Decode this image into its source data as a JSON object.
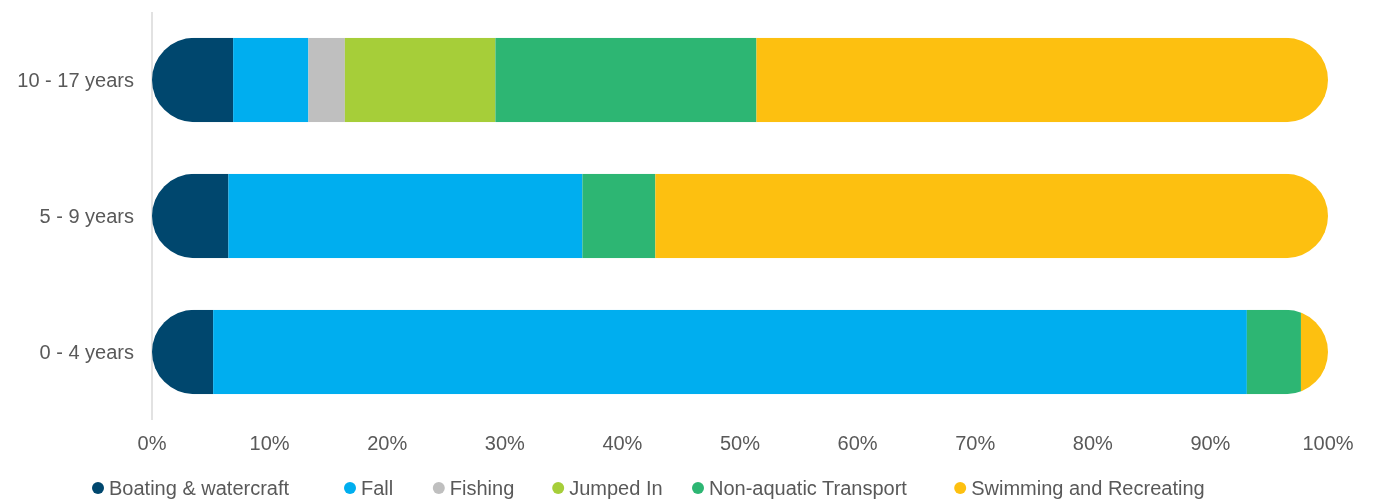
{
  "chart_data": {
    "type": "bar",
    "orientation": "horizontal",
    "stacked": true,
    "categories": [
      "10 - 17 years",
      "5 - 9 years",
      "0 - 4 years"
    ],
    "series": [
      {
        "name": "Boating & watercraft",
        "color": "#00476e",
        "values": [
          6.9,
          6.5,
          5.2
        ]
      },
      {
        "name": "Fall",
        "color": "#00aeef",
        "values": [
          6.4,
          30.1,
          87.9
        ]
      },
      {
        "name": "Fishing",
        "color": "#bfbfbf",
        "values": [
          3.1,
          0,
          0
        ]
      },
      {
        "name": "Jumped In",
        "color": "#a6ce39",
        "values": [
          12.8,
          0,
          0
        ]
      },
      {
        "name": "Non-aquatic Transport",
        "color": "#2db673",
        "values": [
          22.2,
          6.2,
          4.6
        ]
      },
      {
        "name": "Swimming and Recreating",
        "color": "#fdc010",
        "values": [
          48.6,
          57.2,
          2.3
        ]
      }
    ],
    "xlim": [
      0,
      100
    ],
    "xticks": [
      {
        "value": 0,
        "label": "0%"
      },
      {
        "value": 10,
        "label": "10%"
      },
      {
        "value": 20,
        "label": "20%"
      },
      {
        "value": 30,
        "label": "30%"
      },
      {
        "value": 40,
        "label": "40%"
      },
      {
        "value": 50,
        "label": "50%"
      },
      {
        "value": 60,
        "label": "60%"
      },
      {
        "value": 70,
        "label": "70%"
      },
      {
        "value": 80,
        "label": "80%"
      },
      {
        "value": 90,
        "label": "90%"
      },
      {
        "value": 100,
        "label": "100%"
      }
    ],
    "grid": false,
    "legend": "bottom"
  }
}
